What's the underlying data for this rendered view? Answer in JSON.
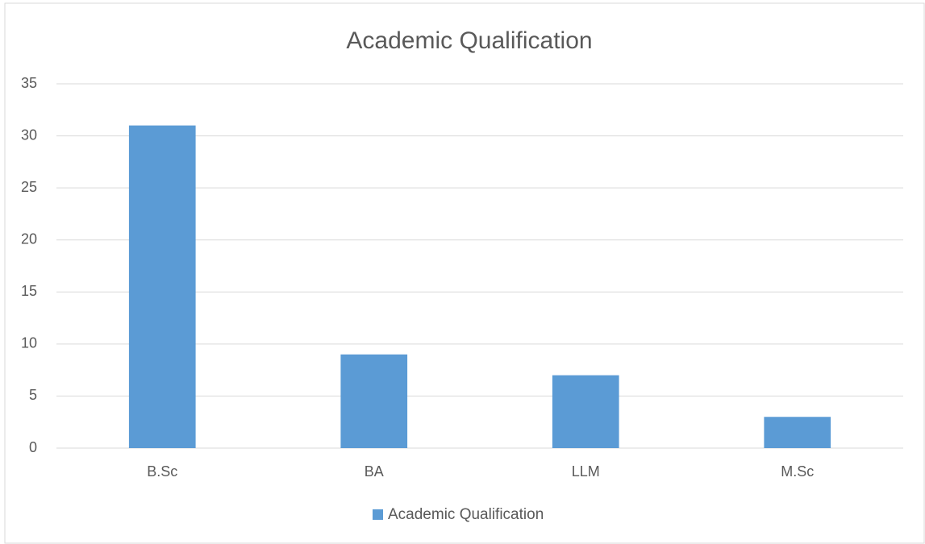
{
  "chart_data": {
    "type": "bar",
    "title": "Academic Qualification",
    "categories": [
      "B.Sc",
      "BA",
      "LLM",
      "M.Sc"
    ],
    "series": [
      {
        "name": "Academic Qualification",
        "color": "#5b9bd5",
        "values": [
          31,
          9,
          7,
          3
        ]
      }
    ],
    "ylim": [
      0,
      35
    ],
    "yticks": [
      0,
      5,
      10,
      15,
      20,
      25,
      30,
      35
    ],
    "grid": true,
    "legend": "bottom"
  }
}
